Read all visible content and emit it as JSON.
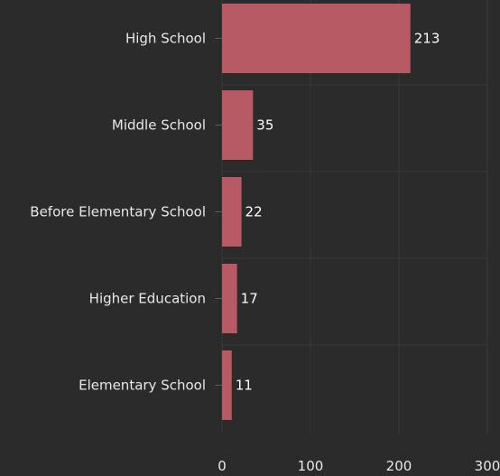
{
  "chart_data": {
    "type": "bar",
    "orientation": "horizontal",
    "categories": [
      "High School",
      "Middle School",
      "Before Elementary School",
      "Higher Education",
      "Elementary School"
    ],
    "values": [
      213,
      35,
      22,
      17,
      11
    ],
    "value_labels": [
      "213",
      "35",
      "22",
      "17",
      "11"
    ],
    "title": "",
    "xlabel": "",
    "ylabel": "",
    "xlim": [
      0,
      300
    ],
    "xticks": [
      0,
      100,
      200,
      300
    ],
    "xtick_labels": [
      "0",
      "100",
      "200",
      "300"
    ],
    "grid": true,
    "legend": "none",
    "bar_color": "#b85a64",
    "background_color": "#2b2b2b",
    "text_color": "#e8e8e8"
  }
}
